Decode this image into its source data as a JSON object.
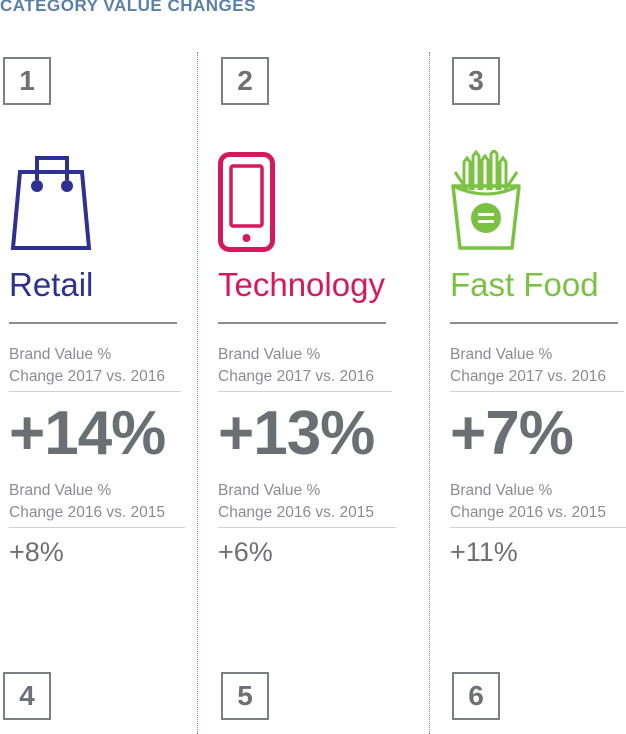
{
  "header": {
    "title": "CATEGORY VALUE CHANGES"
  },
  "columns": [
    {
      "number": "1",
      "icon": "shopping-bag-icon",
      "category": "Retail",
      "color": "#2e3192",
      "label_2017_line1": "Brand Value %",
      "label_2017_line2": "Change 2017 vs. 2016",
      "change_2017": "+14%",
      "label_2016_line1": "Brand Value %",
      "label_2016_line2": "Change 2016 vs. 2015",
      "change_2016": "+8%"
    },
    {
      "number": "2",
      "icon": "smartphone-icon",
      "category": "Technology",
      "color": "#d6185c",
      "label_2017_line1": "Brand Value %",
      "label_2017_line2": "Change 2017 vs. 2016",
      "change_2017": "+13%",
      "label_2016_line1": "Brand Value %",
      "label_2016_line2": "Change 2016 vs. 2015",
      "change_2016": "+6%"
    },
    {
      "number": "3",
      "icon": "french-fries-icon",
      "category": "Fast Food",
      "color": "#7cc242",
      "label_2017_line1": "Brand Value %",
      "label_2017_line2": "Change 2017 vs. 2016",
      "change_2017": "+7%",
      "label_2016_line1": "Brand Value %",
      "label_2016_line2": "Change 2016 vs. 2015",
      "change_2016": "+11%"
    }
  ],
  "next_numbers": [
    "4",
    "5",
    "6"
  ],
  "colors": {
    "title": "#5a7fa8",
    "divider": "#6d8bb3",
    "text": "#6e7075"
  }
}
